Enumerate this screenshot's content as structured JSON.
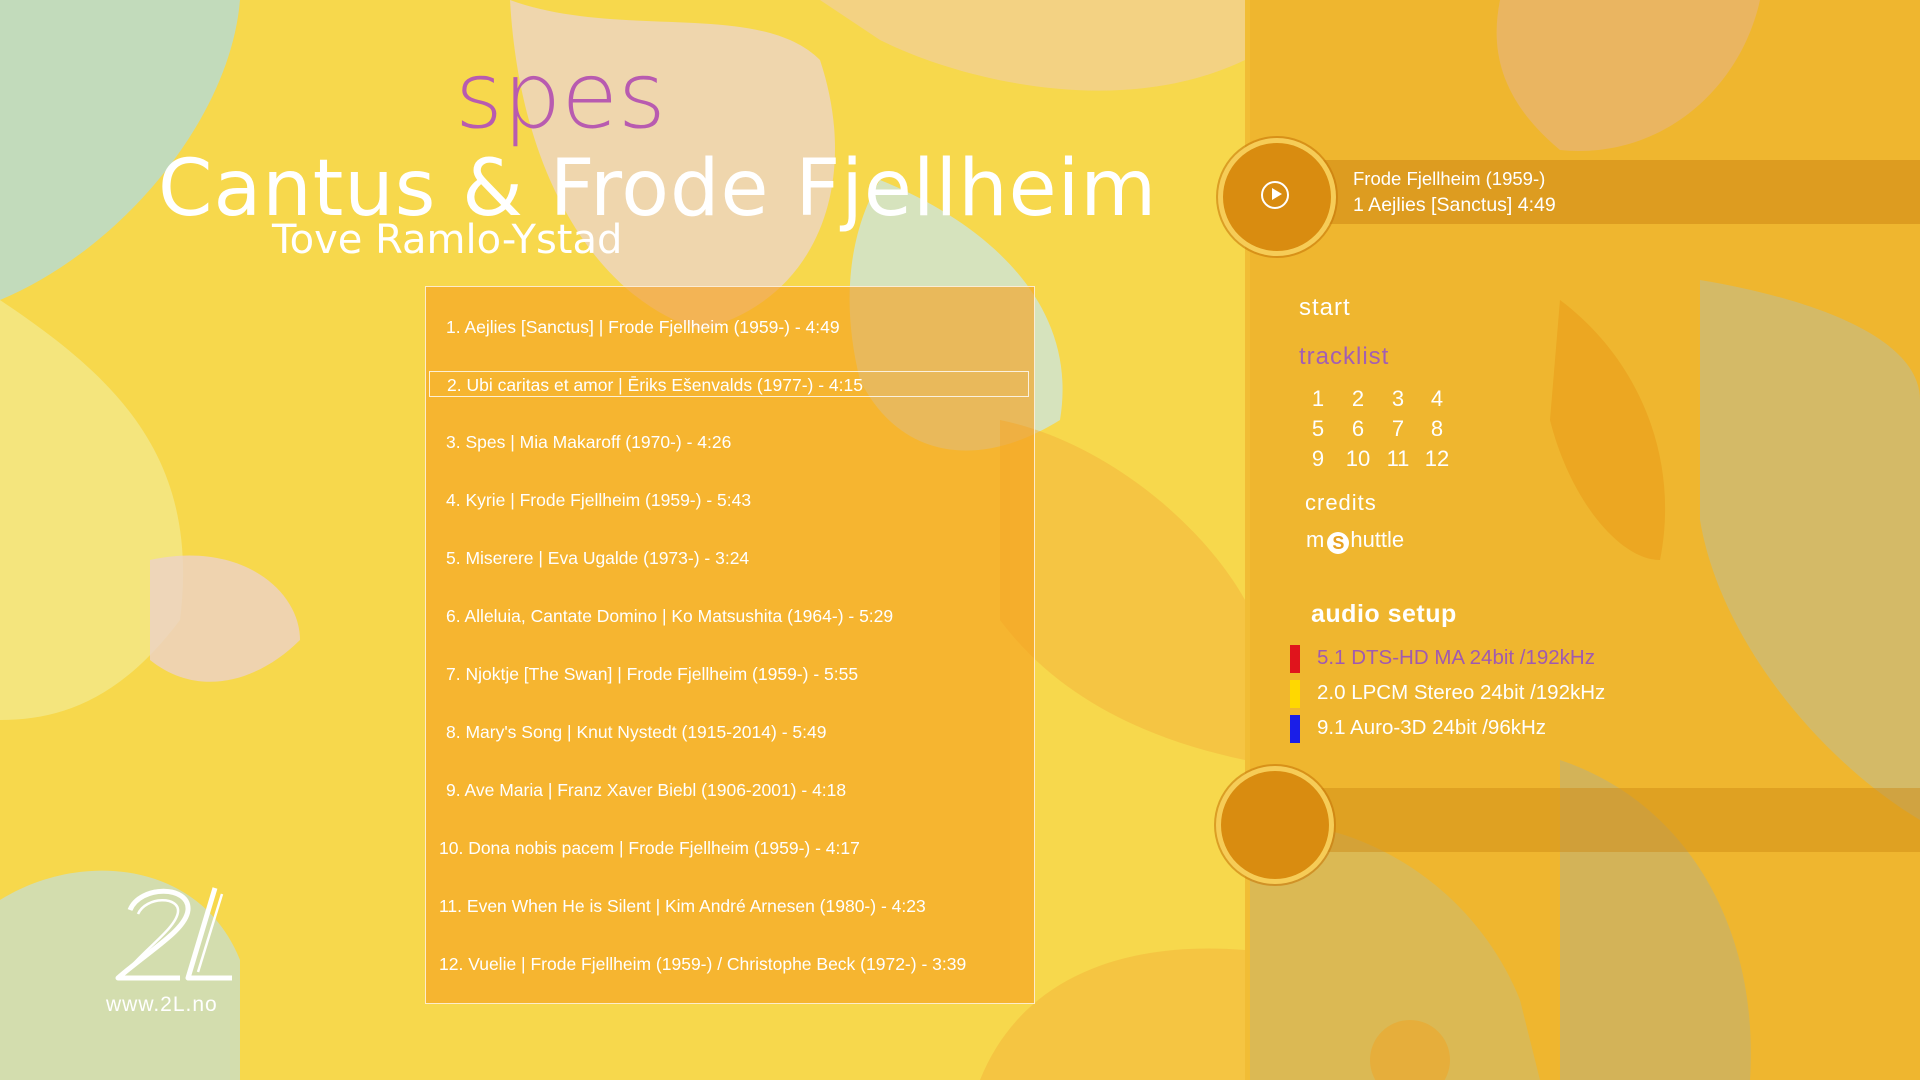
{
  "album": {
    "title": "spes",
    "artist": "Cantus & Frode Fjellheim",
    "soloist": "Tove Ramlo-Ystad"
  },
  "tracklist": [
    "1. Aejlies [Sanctus] | Frode Fjellheim (1959-)   -   4:49",
    "2. Ubi caritas et amor | Ēriks Ešenvalds (1977-)   -   4:15",
    "3. Spes | Mia Makaroff (1970-)   -   4:26",
    "4. Kyrie | Frode Fjellheim (1959-)   -   5:43",
    "5. Miserere | Eva Ugalde (1973-)   -   3:24",
    "6. Alleluia, Cantate Domino | Ko Matsushita (1964-)   -   5:29",
    "7. Njoktje [The Swan] | Frode Fjellheim (1959-)   -   5:55",
    "8. Mary's Song | Knut Nystedt (1915-2014)   -   5:49",
    "9. Ave Maria | Franz Xaver Biebl (1906-2001)   -   4:18",
    "10. Dona nobis pacem | Frode Fjellheim (1959-)   -   4:17",
    "11. Even When He is Silent | Kim André Arnesen (1980-)   -   4:23",
    "12. Vuelie | Frode Fjellheim (1959-) / Christophe Beck (1972-)   -   3:39"
  ],
  "selected_track": 2,
  "now_playing": {
    "composer": "Frode Fjellheim (1959-)",
    "track": "1  Aejlies [Sanctus] 4:49",
    "play_icon": "play-circle-icon"
  },
  "menu": {
    "start": "start",
    "tracklist": "tracklist",
    "track_numbers": [
      "1",
      "2",
      "3",
      "4",
      "5",
      "6",
      "7",
      "8",
      "9",
      "10",
      "11",
      "12"
    ],
    "credits": "credits",
    "mshuttle_pre": "m",
    "mshuttle_badge": "S",
    "mshuttle_post": "huttle"
  },
  "audio_setup": {
    "title": "audio setup",
    "options": [
      {
        "label": "5.1 DTS-HD MA 24bit /192kHz",
        "color": "#e0141c",
        "active": true
      },
      {
        "label": "2.0 LPCM Stereo 24bit /192kHz",
        "color": "#ffd800",
        "active": false
      },
      {
        "label": "9.1 Auro-3D 24bit /96kHz",
        "color": "#1a1ee8",
        "active": false
      }
    ]
  },
  "label": {
    "logo": "2L",
    "url": "www.2L.no"
  },
  "colors": {
    "accent_purple": "#a35fb2",
    "panel_orange": "#f5a01e",
    "background_yellow": "#f6d64a"
  }
}
